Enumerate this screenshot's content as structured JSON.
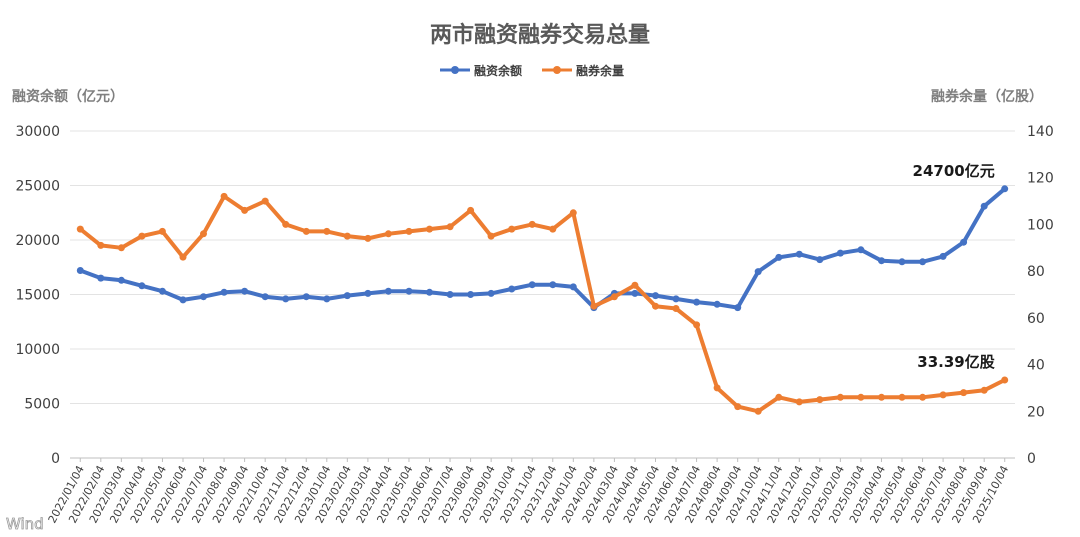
{
  "chart_data": {
    "type": "line",
    "title": "两市融资融券交易总量",
    "ylabel_left": "融资余额（亿元）",
    "ylabel_right": "融券余量（亿股）",
    "ylim_left": [
      0,
      30000
    ],
    "ylim_right": [
      0,
      140
    ],
    "yticks_left": [
      "0",
      "5000",
      "10000",
      "15000",
      "20000",
      "25000",
      "30000"
    ],
    "yticks_right": [
      "0",
      "20",
      "40",
      "60",
      "80",
      "100",
      "120",
      "140"
    ],
    "grid": true,
    "legend_position": "top-center",
    "x_labels": [
      "2022/01/04",
      "2022/02/04",
      "2022/03/04",
      "2022/04/04",
      "2022/05/04",
      "2022/06/04",
      "2022/07/04",
      "2022/08/04",
      "2022/09/04",
      "2022/10/04",
      "2022/11/04",
      "2022/12/04",
      "2023/01/04",
      "2023/02/04",
      "2023/03/04",
      "2023/04/04",
      "2023/05/04",
      "2023/06/04",
      "2023/07/04",
      "2023/08/04",
      "2023/09/04",
      "2023/10/04",
      "2023/11/04",
      "2023/12/04",
      "2024/01/04",
      "2024/02/04",
      "2024/03/04",
      "2024/04/04",
      "2024/05/04",
      "2024/06/04",
      "2024/07/04",
      "2024/08/04",
      "2024/09/04",
      "2024/10/04",
      "2024/11/04",
      "2024/12/04",
      "2025/01/04",
      "2025/02/04",
      "2025/03/04",
      "2025/04/04",
      "2025/05/04",
      "2025/06/04",
      "2025/07/04",
      "2025/08/04",
      "2025/09/04",
      "2025/10/04"
    ],
    "series": [
      {
        "name": "融资余额",
        "axis": "left",
        "color": "#4472c4",
        "x": [
          "2022/01/04",
          "2022/02/04",
          "2022/03/04",
          "2022/04/04",
          "2022/05/04",
          "2022/06/04",
          "2022/07/04",
          "2022/08/04",
          "2022/09/04",
          "2022/10/04",
          "2022/11/04",
          "2022/12/04",
          "2023/01/04",
          "2023/02/04",
          "2023/03/04",
          "2023/04/04",
          "2023/05/04",
          "2023/06/04",
          "2023/07/04",
          "2023/08/04",
          "2023/09/04",
          "2023/10/04",
          "2023/11/04",
          "2023/12/04",
          "2024/01/04",
          "2024/02/04",
          "2024/03/04",
          "2024/04/04",
          "2024/05/04",
          "2024/06/04",
          "2024/07/04",
          "2024/08/04",
          "2024/09/04",
          "2024/10/04",
          "2024/11/04",
          "2024/12/04",
          "2025/01/04",
          "2025/02/04",
          "2025/03/04",
          "2025/04/04",
          "2025/05/04",
          "2025/06/04",
          "2025/07/04",
          "2025/08/04",
          "2025/09/04",
          "2025/10/04"
        ],
        "values": [
          17200,
          16500,
          16300,
          15800,
          15300,
          14500,
          14800,
          15200,
          15300,
          14800,
          14600,
          14800,
          14600,
          14900,
          15100,
          15300,
          15300,
          15200,
          15000,
          15000,
          15100,
          15500,
          15900,
          15900,
          15700,
          13800,
          15100,
          15100,
          14900,
          14600,
          14300,
          14100,
          13800,
          17100,
          18400,
          18700,
          18200,
          18800,
          19100,
          18100,
          18000,
          18000,
          18500,
          19800,
          23100,
          24700
        ]
      },
      {
        "name": "融券余量",
        "axis": "right",
        "color": "#ed7d31",
        "x": [
          "2022/01/04",
          "2022/02/04",
          "2022/03/04",
          "2022/04/04",
          "2022/05/04",
          "2022/06/04",
          "2022/07/04",
          "2022/08/04",
          "2022/09/04",
          "2022/10/04",
          "2022/11/04",
          "2022/12/04",
          "2023/01/04",
          "2023/02/04",
          "2023/03/04",
          "2023/04/04",
          "2023/05/04",
          "2023/06/04",
          "2023/07/04",
          "2023/08/04",
          "2023/09/04",
          "2023/10/04",
          "2023/11/04",
          "2023/12/04",
          "2024/01/04",
          "2024/02/04",
          "2024/03/04",
          "2024/04/04",
          "2024/05/04",
          "2024/06/04",
          "2024/07/04",
          "2024/08/04",
          "2024/09/04",
          "2024/10/04",
          "2024/11/04",
          "2024/12/04",
          "2025/01/04",
          "2025/02/04",
          "2025/03/04",
          "2025/04/04",
          "2025/05/04",
          "2025/06/04",
          "2025/07/04",
          "2025/08/04",
          "2025/09/04",
          "2025/10/04"
        ],
        "values": [
          98,
          91,
          90,
          95,
          97,
          86,
          96,
          112,
          106,
          110,
          100,
          97,
          97,
          95,
          94,
          96,
          97,
          98,
          99,
          106,
          95,
          98,
          100,
          98,
          105,
          65,
          69,
          74,
          65,
          64,
          57,
          30,
          22,
          20,
          26,
          24,
          25,
          26,
          26,
          26,
          26,
          26,
          27,
          28,
          29,
          33.39
        ]
      }
    ],
    "annotations": [
      {
        "text": "24700亿元",
        "series": "融资余额",
        "x": "2025/10/04",
        "y": 24700
      },
      {
        "text": "33.39亿股",
        "series": "融券余量",
        "x": "2025/10/04",
        "y": 33.39
      }
    ]
  },
  "watermark": "Wind"
}
